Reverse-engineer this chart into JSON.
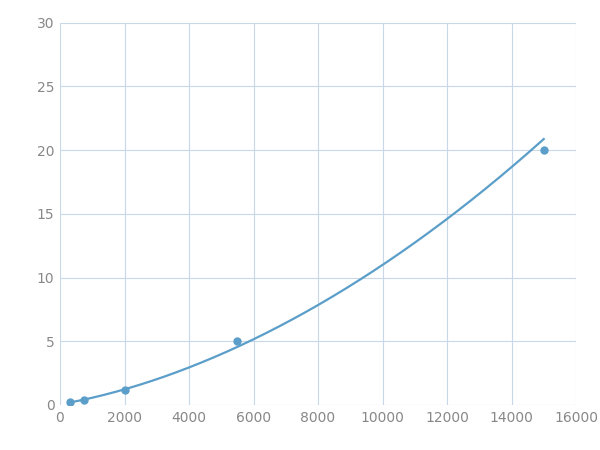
{
  "x": [
    300,
    750,
    2000,
    5500,
    15000
  ],
  "y": [
    0.2,
    0.4,
    1.2,
    5.0,
    20.0
  ],
  "line_color": "#5B9EC9",
  "marker_color": "#5B9EC9",
  "marker_size": 5,
  "linewidth": 1.6,
  "xlim": [
    0,
    16000
  ],
  "ylim": [
    0,
    30
  ],
  "xticks": [
    0,
    2000,
    4000,
    6000,
    8000,
    10000,
    12000,
    14000,
    16000
  ],
  "yticks": [
    0,
    5,
    10,
    15,
    20,
    25,
    30
  ],
  "grid_color": "#C8D8E8",
  "background_color": "#FFFFFF",
  "tick_color": "#888888",
  "tick_fontsize": 10,
  "figsize": [
    6.0,
    4.5
  ],
  "dpi": 100
}
